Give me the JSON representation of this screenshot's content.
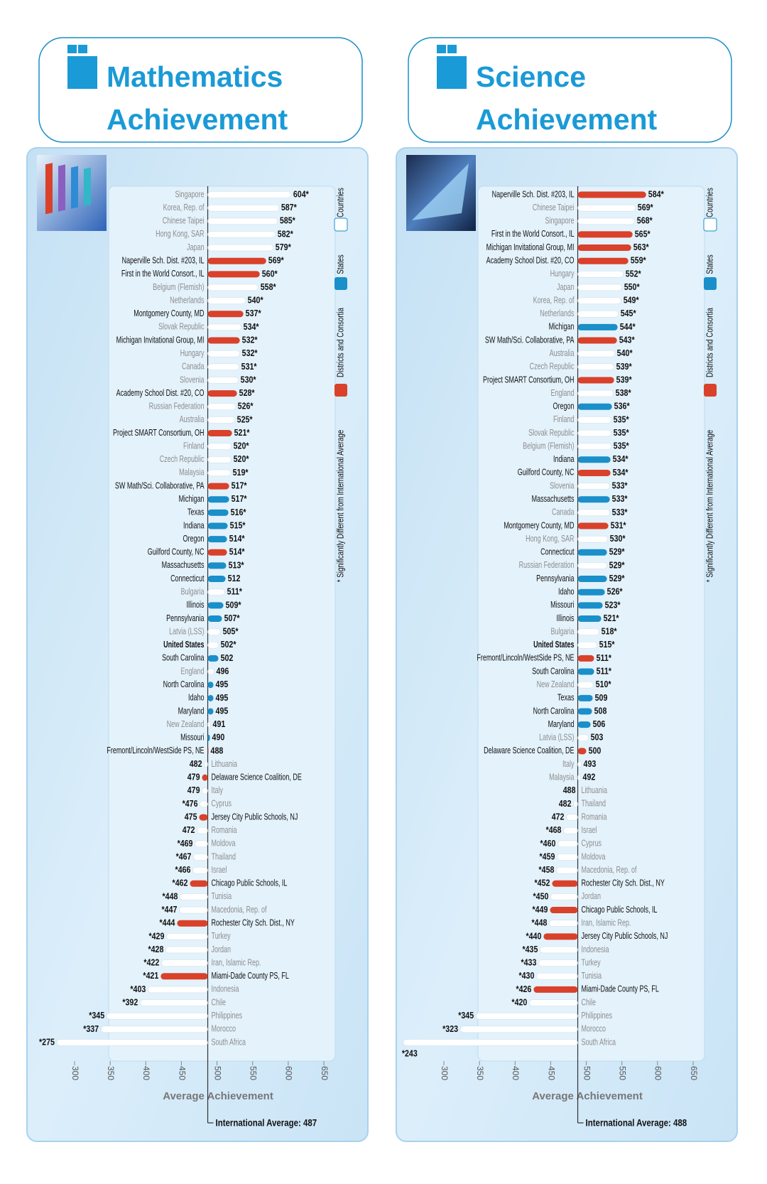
{
  "chart_data": [
    {
      "type": "bar",
      "title": [
        "Mathematics",
        "Achievement"
      ],
      "xlabel": "Average Achievement",
      "average": {
        "value": 487,
        "label": "International Average: 487"
      },
      "xlim": [
        300,
        650
      ],
      "xticks": [
        300,
        350,
        400,
        450,
        500,
        550,
        600,
        650
      ],
      "legend": [
        {
          "name": "Countries",
          "color": "#ffffff"
        },
        {
          "name": "States",
          "color": "#1a8fc9"
        },
        {
          "name": "Districts and Consortia",
          "color": "#d9412a"
        }
      ],
      "note": "* Significantly Different from International Average",
      "bold": 34,
      "categories": [
        "Singapore",
        "Korea, Rep. of",
        "Chinese Taipei",
        "Hong Kong, SAR",
        "Japan",
        "Naperville Sch. Dist. #203, IL",
        "First in the World Consort., IL",
        "Belgium (Flemish)",
        "Netherlands",
        "Montgomery County, MD",
        "Slovak Republic",
        "Michigan Invitational Group, MI",
        "Hungary",
        "Canada",
        "Slovenia",
        "Academy School Dist. #20, CO",
        "Russian Federation",
        "Australia",
        "Project SMART Consortium, OH",
        "Finland",
        "Czech Republic",
        "Malaysia",
        "SW Math/Sci. Collaborative, PA",
        "Michigan",
        "Texas",
        "Indiana",
        "Oregon",
        "Guilford County, NC",
        "Massachusetts",
        "Connecticut",
        "Bulgaria",
        "Illinois",
        "Pennsylvania",
        "Latvia (LSS)",
        "United States",
        "South Carolina",
        "England",
        "North Carolina",
        "Idaho",
        "Maryland",
        "New Zealand",
        "Missouri",
        "Fremont/Lincoln/WestSide PS, NE",
        "Lithuania",
        "Delaware Science Coalition, DE",
        "Italy",
        "Cyprus",
        "Jersey City Public Schools, NJ",
        "Romania",
        "Moldova",
        "Thailand",
        "Israel",
        "Chicago Public Schools, IL",
        "Tunisia",
        "Macedonia, Rep. of",
        "Rochester City Sch. Dist., NY",
        "Turkey",
        "Jordan",
        "Iran, Islamic Rep.",
        "Miami-Dade County PS, FL",
        "Indonesia",
        "Chile",
        "Philippines",
        "Morocco",
        "South Africa"
      ],
      "values": [
        604,
        587,
        585,
        582,
        579,
        569,
        560,
        558,
        540,
        537,
        534,
        532,
        532,
        531,
        530,
        528,
        526,
        525,
        521,
        520,
        520,
        519,
        517,
        517,
        516,
        515,
        514,
        514,
        513,
        512,
        511,
        509,
        507,
        505,
        502,
        502,
        496,
        495,
        495,
        495,
        491,
        490,
        488,
        482,
        479,
        479,
        476,
        475,
        472,
        469,
        467,
        466,
        462,
        448,
        447,
        444,
        429,
        428,
        422,
        421,
        403,
        392,
        345,
        337,
        275
      ],
      "value_labels": [
        "604*",
        "587*",
        "585*",
        "582*",
        "579*",
        "569*",
        "560*",
        "558*",
        "540*",
        "537*",
        "534*",
        "532*",
        "532*",
        "531*",
        "530*",
        "528*",
        "526*",
        "525*",
        "521*",
        "520*",
        "520*",
        "519*",
        "517*",
        "517*",
        "516*",
        "515*",
        "514*",
        "514*",
        "513*",
        "512",
        "511*",
        "509*",
        "507*",
        "505*",
        "502*",
        "502",
        "496",
        "495",
        "495",
        "495",
        "491",
        "490",
        "488",
        "482",
        "479",
        "479",
        "*476",
        "475",
        "472",
        "*469",
        "*467",
        "*466",
        "*462",
        "*448",
        "*447",
        "*444",
        "*429",
        "*428",
        "*422",
        "*421",
        "*403",
        "*392",
        "*345",
        "*337",
        "*275"
      ],
      "groups": [
        0,
        0,
        0,
        0,
        0,
        2,
        2,
        0,
        0,
        2,
        0,
        2,
        0,
        0,
        0,
        2,
        0,
        0,
        2,
        0,
        0,
        0,
        2,
        1,
        1,
        1,
        1,
        2,
        1,
        1,
        0,
        1,
        1,
        0,
        0,
        1,
        0,
        1,
        1,
        1,
        0,
        1,
        2,
        0,
        2,
        0,
        0,
        2,
        0,
        0,
        0,
        0,
        2,
        0,
        0,
        2,
        0,
        0,
        0,
        2,
        0,
        0,
        0,
        0,
        0
      ]
    },
    {
      "type": "bar",
      "title": [
        "Science",
        "Achievement"
      ],
      "xlabel": "Average Achievement",
      "average": {
        "value": 488,
        "label": "International Average: 488"
      },
      "xlim": [
        300,
        650
      ],
      "xticks": [
        300,
        350,
        400,
        450,
        500,
        550,
        600,
        650
      ],
      "legend": [
        {
          "name": "Countries",
          "color": "#ffffff"
        },
        {
          "name": "States",
          "color": "#1a8fc9"
        },
        {
          "name": "Districts and Consortia",
          "color": "#d9412a"
        }
      ],
      "note": "* Significantly Different from International Average",
      "bold": 34,
      "categories": [
        "Naperville Sch. Dist. #203, IL",
        "Chinese Taipei",
        "Singapore",
        "First in the World Consort., IL",
        "Michigan Invitational Group, MI",
        "Academy School Dist. #20, CO",
        "Hungary",
        "Japan",
        "Korea, Rep. of",
        "Netherlands",
        "Michigan",
        "SW Math/Sci. Collaborative, PA",
        "Australia",
        "Czech Republic",
        "Project SMART Consortium, OH",
        "England",
        "Oregon",
        "Finland",
        "Slovak Republic",
        "Belgium (Flemish)",
        "Indiana",
        "Guilford County, NC",
        "Slovenia",
        "Massachusetts",
        "Canada",
        "Montgomery County, MD",
        "Hong Kong, SAR",
        "Connecticut",
        "Russian Federation",
        "Pennsylvania",
        "Idaho",
        "Missouri",
        "Illinois",
        "Bulgaria",
        "United States",
        "Fremont/Lincoln/WestSide PS, NE",
        "South Carolina",
        "New Zealand",
        "Texas",
        "North Carolina",
        "Maryland",
        "Latvia (LSS)",
        "Delaware Science Coalition, DE",
        "Italy",
        "Malaysia",
        "Lithuania",
        "Thailand",
        "Romania",
        "Israel",
        "Cyprus",
        "Moldova",
        "Macedonia, Rep. of",
        "Rochester City Sch. Dist., NY",
        "Jordan",
        "Chicago Public Schools, IL",
        "Iran, Islamic Rep.",
        "Jersey City Public Schools, NJ",
        "Indonesia",
        "Turkey",
        "Tunisia",
        "Miami-Dade County PS, FL",
        "Chile",
        "Philippines",
        "Morocco",
        "South Africa"
      ],
      "values": [
        584,
        569,
        568,
        565,
        563,
        559,
        552,
        550,
        549,
        545,
        544,
        543,
        540,
        539,
        539,
        538,
        536,
        535,
        535,
        535,
        534,
        534,
        533,
        533,
        533,
        531,
        530,
        529,
        529,
        529,
        526,
        523,
        521,
        518,
        515,
        511,
        511,
        510,
        509,
        508,
        506,
        503,
        500,
        493,
        492,
        488,
        482,
        472,
        468,
        460,
        459,
        458,
        452,
        450,
        449,
        448,
        440,
        435,
        433,
        430,
        426,
        420,
        345,
        323,
        243
      ],
      "value_labels": [
        "584*",
        "569*",
        "568*",
        "565*",
        "563*",
        "559*",
        "552*",
        "550*",
        "549*",
        "545*",
        "544*",
        "543*",
        "540*",
        "539*",
        "539*",
        "538*",
        "536*",
        "535*",
        "535*",
        "535*",
        "534*",
        "534*",
        "533*",
        "533*",
        "533*",
        "531*",
        "530*",
        "529*",
        "529*",
        "529*",
        "526*",
        "523*",
        "521*",
        "518*",
        "515*",
        "511*",
        "511*",
        "510*",
        "509",
        "508",
        "506",
        "503",
        "500",
        "493",
        "492",
        "488",
        "482",
        "472",
        "*468",
        "*460",
        "*459",
        "*458",
        "*452",
        "*450",
        "*449",
        "*448",
        "*440",
        "*435",
        "*433",
        "*430",
        "*426",
        "*420",
        "*345",
        "*323",
        "*243"
      ],
      "groups": [
        2,
        0,
        0,
        2,
        2,
        2,
        0,
        0,
        0,
        0,
        1,
        2,
        0,
        0,
        2,
        0,
        1,
        0,
        0,
        0,
        1,
        2,
        0,
        1,
        0,
        2,
        0,
        1,
        0,
        1,
        1,
        1,
        1,
        0,
        0,
        2,
        1,
        0,
        1,
        1,
        1,
        0,
        2,
        0,
        0,
        0,
        0,
        0,
        0,
        0,
        0,
        0,
        2,
        0,
        2,
        0,
        2,
        0,
        0,
        0,
        2,
        0,
        0,
        0,
        0
      ]
    }
  ]
}
